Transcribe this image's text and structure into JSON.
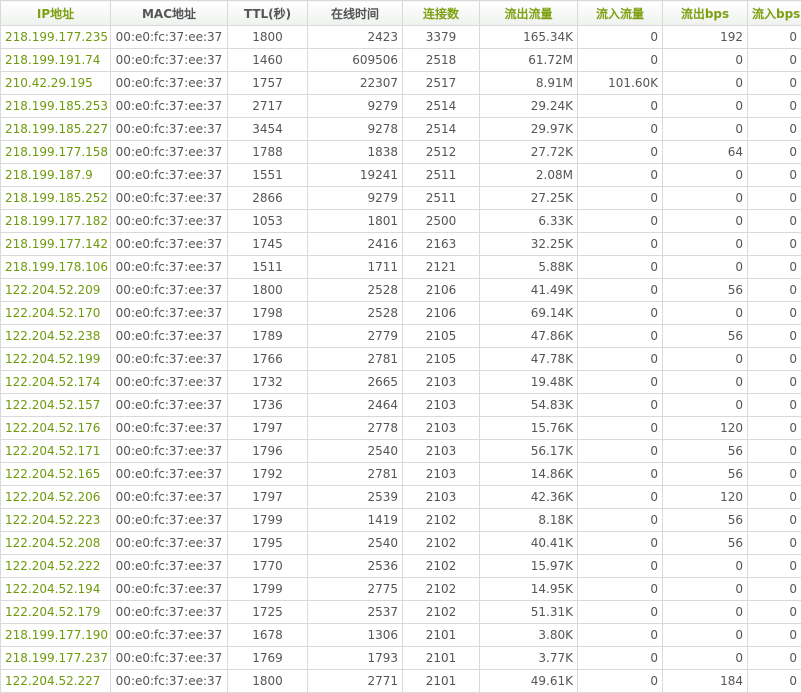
{
  "columns": [
    {
      "key": "ip",
      "label": "IP地址",
      "style": "sortable",
      "align": "ip"
    },
    {
      "key": "mac",
      "label": "MAC地址",
      "style": "plain",
      "align": "mac"
    },
    {
      "key": "ttl",
      "label": "TTL(秒)",
      "style": "plain",
      "align": "c"
    },
    {
      "key": "online",
      "label": "在线时间",
      "style": "plain",
      "align": "num"
    },
    {
      "key": "conns",
      "label": "连接数",
      "style": "sortable",
      "align": "c"
    },
    {
      "key": "out_flow",
      "label": "流出流量",
      "style": "sortable",
      "align": "num"
    },
    {
      "key": "in_flow",
      "label": "流入流量",
      "style": "sortable",
      "align": "num"
    },
    {
      "key": "out_bps",
      "label": "流出bps",
      "style": "sortable",
      "align": "num"
    },
    {
      "key": "in_bps",
      "label": "流入bps",
      "style": "sortable",
      "align": "num"
    }
  ],
  "rows": [
    {
      "ip": "218.199.177.235",
      "mac": "00:e0:fc:37:ee:37",
      "ttl": "1800",
      "online": "2423",
      "conns": "3379",
      "out_flow": "165.34K",
      "in_flow": "0",
      "out_bps": "192",
      "in_bps": "0"
    },
    {
      "ip": "218.199.191.74",
      "mac": "00:e0:fc:37:ee:37",
      "ttl": "1460",
      "online": "609506",
      "conns": "2518",
      "out_flow": "61.72M",
      "in_flow": "0",
      "out_bps": "0",
      "in_bps": "0"
    },
    {
      "ip": "210.42.29.195",
      "mac": "00:e0:fc:37:ee:37",
      "ttl": "1757",
      "online": "22307",
      "conns": "2517",
      "out_flow": "8.91M",
      "in_flow": "101.60K",
      "out_bps": "0",
      "in_bps": "0"
    },
    {
      "ip": "218.199.185.253",
      "mac": "00:e0:fc:37:ee:37",
      "ttl": "2717",
      "online": "9279",
      "conns": "2514",
      "out_flow": "29.24K",
      "in_flow": "0",
      "out_bps": "0",
      "in_bps": "0"
    },
    {
      "ip": "218.199.185.227",
      "mac": "00:e0:fc:37:ee:37",
      "ttl": "3454",
      "online": "9278",
      "conns": "2514",
      "out_flow": "29.97K",
      "in_flow": "0",
      "out_bps": "0",
      "in_bps": "0"
    },
    {
      "ip": "218.199.177.158",
      "mac": "00:e0:fc:37:ee:37",
      "ttl": "1788",
      "online": "1838",
      "conns": "2512",
      "out_flow": "27.72K",
      "in_flow": "0",
      "out_bps": "64",
      "in_bps": "0"
    },
    {
      "ip": "218.199.187.9",
      "mac": "00:e0:fc:37:ee:37",
      "ttl": "1551",
      "online": "19241",
      "conns": "2511",
      "out_flow": "2.08M",
      "in_flow": "0",
      "out_bps": "0",
      "in_bps": "0"
    },
    {
      "ip": "218.199.185.252",
      "mac": "00:e0:fc:37:ee:37",
      "ttl": "2866",
      "online": "9279",
      "conns": "2511",
      "out_flow": "27.25K",
      "in_flow": "0",
      "out_bps": "0",
      "in_bps": "0"
    },
    {
      "ip": "218.199.177.182",
      "mac": "00:e0:fc:37:ee:37",
      "ttl": "1053",
      "online": "1801",
      "conns": "2500",
      "out_flow": "6.33K",
      "in_flow": "0",
      "out_bps": "0",
      "in_bps": "0"
    },
    {
      "ip": "218.199.177.142",
      "mac": "00:e0:fc:37:ee:37",
      "ttl": "1745",
      "online": "2416",
      "conns": "2163",
      "out_flow": "32.25K",
      "in_flow": "0",
      "out_bps": "0",
      "in_bps": "0"
    },
    {
      "ip": "218.199.178.106",
      "mac": "00:e0:fc:37:ee:37",
      "ttl": "1511",
      "online": "1711",
      "conns": "2121",
      "out_flow": "5.88K",
      "in_flow": "0",
      "out_bps": "0",
      "in_bps": "0"
    },
    {
      "ip": "122.204.52.209",
      "mac": "00:e0:fc:37:ee:37",
      "ttl": "1800",
      "online": "2528",
      "conns": "2106",
      "out_flow": "41.49K",
      "in_flow": "0",
      "out_bps": "56",
      "in_bps": "0"
    },
    {
      "ip": "122.204.52.170",
      "mac": "00:e0:fc:37:ee:37",
      "ttl": "1798",
      "online": "2528",
      "conns": "2106",
      "out_flow": "69.14K",
      "in_flow": "0",
      "out_bps": "0",
      "in_bps": "0"
    },
    {
      "ip": "122.204.52.238",
      "mac": "00:e0:fc:37:ee:37",
      "ttl": "1789",
      "online": "2779",
      "conns": "2105",
      "out_flow": "47.86K",
      "in_flow": "0",
      "out_bps": "56",
      "in_bps": "0"
    },
    {
      "ip": "122.204.52.199",
      "mac": "00:e0:fc:37:ee:37",
      "ttl": "1766",
      "online": "2781",
      "conns": "2105",
      "out_flow": "47.78K",
      "in_flow": "0",
      "out_bps": "0",
      "in_bps": "0"
    },
    {
      "ip": "122.204.52.174",
      "mac": "00:e0:fc:37:ee:37",
      "ttl": "1732",
      "online": "2665",
      "conns": "2103",
      "out_flow": "19.48K",
      "in_flow": "0",
      "out_bps": "0",
      "in_bps": "0"
    },
    {
      "ip": "122.204.52.157",
      "mac": "00:e0:fc:37:ee:37",
      "ttl": "1736",
      "online": "2464",
      "conns": "2103",
      "out_flow": "54.83K",
      "in_flow": "0",
      "out_bps": "0",
      "in_bps": "0"
    },
    {
      "ip": "122.204.52.176",
      "mac": "00:e0:fc:37:ee:37",
      "ttl": "1797",
      "online": "2778",
      "conns": "2103",
      "out_flow": "15.76K",
      "in_flow": "0",
      "out_bps": "120",
      "in_bps": "0"
    },
    {
      "ip": "122.204.52.171",
      "mac": "00:e0:fc:37:ee:37",
      "ttl": "1796",
      "online": "2540",
      "conns": "2103",
      "out_flow": "56.17K",
      "in_flow": "0",
      "out_bps": "56",
      "in_bps": "0"
    },
    {
      "ip": "122.204.52.165",
      "mac": "00:e0:fc:37:ee:37",
      "ttl": "1792",
      "online": "2781",
      "conns": "2103",
      "out_flow": "14.86K",
      "in_flow": "0",
      "out_bps": "56",
      "in_bps": "0"
    },
    {
      "ip": "122.204.52.206",
      "mac": "00:e0:fc:37:ee:37",
      "ttl": "1797",
      "online": "2539",
      "conns": "2103",
      "out_flow": "42.36K",
      "in_flow": "0",
      "out_bps": "120",
      "in_bps": "0"
    },
    {
      "ip": "122.204.52.223",
      "mac": "00:e0:fc:37:ee:37",
      "ttl": "1799",
      "online": "1419",
      "conns": "2102",
      "out_flow": "8.18K",
      "in_flow": "0",
      "out_bps": "56",
      "in_bps": "0"
    },
    {
      "ip": "122.204.52.208",
      "mac": "00:e0:fc:37:ee:37",
      "ttl": "1795",
      "online": "2540",
      "conns": "2102",
      "out_flow": "40.41K",
      "in_flow": "0",
      "out_bps": "56",
      "in_bps": "0"
    },
    {
      "ip": "122.204.52.222",
      "mac": "00:e0:fc:37:ee:37",
      "ttl": "1770",
      "online": "2536",
      "conns": "2102",
      "out_flow": "15.97K",
      "in_flow": "0",
      "out_bps": "0",
      "in_bps": "0"
    },
    {
      "ip": "122.204.52.194",
      "mac": "00:e0:fc:37:ee:37",
      "ttl": "1799",
      "online": "2775",
      "conns": "2102",
      "out_flow": "14.95K",
      "in_flow": "0",
      "out_bps": "0",
      "in_bps": "0"
    },
    {
      "ip": "122.204.52.179",
      "mac": "00:e0:fc:37:ee:37",
      "ttl": "1725",
      "online": "2537",
      "conns": "2102",
      "out_flow": "51.31K",
      "in_flow": "0",
      "out_bps": "0",
      "in_bps": "0"
    },
    {
      "ip": "218.199.177.190",
      "mac": "00:e0:fc:37:ee:37",
      "ttl": "1678",
      "online": "1306",
      "conns": "2101",
      "out_flow": "3.80K",
      "in_flow": "0",
      "out_bps": "0",
      "in_bps": "0"
    },
    {
      "ip": "218.199.177.237",
      "mac": "00:e0:fc:37:ee:37",
      "ttl": "1769",
      "online": "1793",
      "conns": "2101",
      "out_flow": "3.77K",
      "in_flow": "0",
      "out_bps": "0",
      "in_bps": "0"
    },
    {
      "ip": "122.204.52.227",
      "mac": "00:e0:fc:37:ee:37",
      "ttl": "1800",
      "online": "2771",
      "conns": "2101",
      "out_flow": "49.61K",
      "in_flow": "0",
      "out_bps": "184",
      "in_bps": "0"
    }
  ]
}
